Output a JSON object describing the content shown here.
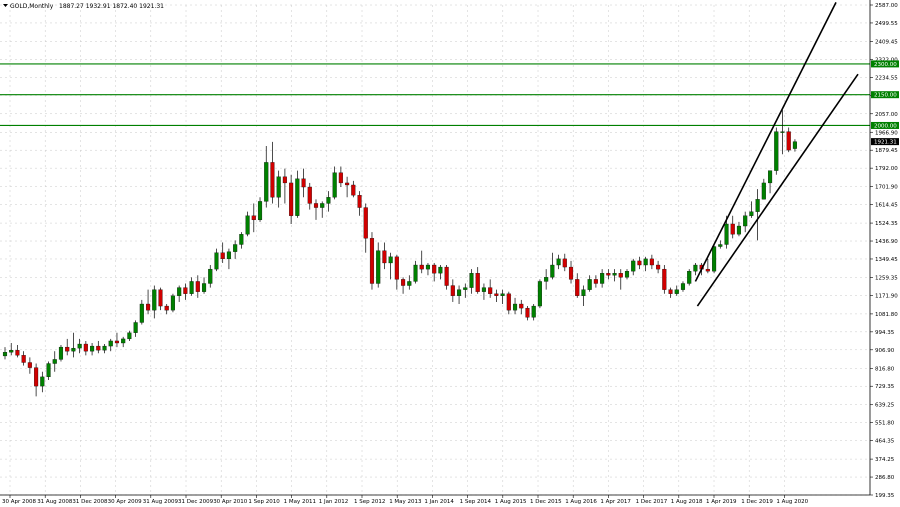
{
  "header": {
    "symbol_label": "GOLD,Monthly",
    "ohlc_label": "1887.27 1932.91 1872.40 1921.31"
  },
  "chart_data": {
    "type": "candlestick",
    "y_ticks": [
      "2587.00",
      "2499.55",
      "2409.45",
      "2322.00",
      "2234.55",
      "2147.10",
      "2057.00",
      "1966.90",
      "1879.45",
      "1792.00",
      "1701.90",
      "1614.45",
      "1524.35",
      "1436.90",
      "1349.45",
      "1259.35",
      "1171.90",
      "1081.80",
      "994.35",
      "906.90",
      "816.80",
      "729.35",
      "639.25",
      "551.80",
      "464.35",
      "374.25",
      "286.80",
      "199.35"
    ],
    "x_ticks": [
      "30 Apr 2008",
      "31 Aug 2008",
      "31 Dec 2008",
      "30 Apr 2009",
      "31 Aug 2009",
      "31 Dec 2009",
      "30 Apr 2010",
      "1 Sep 2010",
      "1 May 2011",
      "1 Jan 2012",
      "1 Sep 2012",
      "1 May 2013",
      "1 Jan 2014",
      "1 Sep 2014",
      "1 Aug 2015",
      "1 Dec 2015",
      "1 Aug 2016",
      "1 Apr 2017",
      "1 Dec 2017",
      "1 Aug 2018",
      "1 Apr 2019",
      "1 Dec 2019",
      "1 Aug 2020"
    ],
    "horizontal_levels": [
      {
        "value": 2300.0,
        "label": "2300.00",
        "color": "#008000"
      },
      {
        "value": 2150.0,
        "label": "2150.00",
        "color": "#008000"
      },
      {
        "value": 2000.0,
        "label": "2000.00",
        "color": "#008000"
      }
    ],
    "current_price": {
      "value": 1921.31,
      "label": "1921.31",
      "color": "#000000"
    },
    "trend_lines": [
      {
        "from": [
          1,
          1210
        ],
        "to": [
          1,
          2600
        ]
      },
      {
        "from": [
          1,
          1150
        ],
        "to": [
          1,
          2250
        ]
      }
    ],
    "candles": [
      [
        877,
        920,
        860,
        895
      ],
      [
        895,
        940,
        880,
        905
      ],
      [
        905,
        930,
        870,
        880
      ],
      [
        880,
        900,
        830,
        845
      ],
      [
        845,
        870,
        790,
        820
      ],
      [
        820,
        840,
        680,
        730
      ],
      [
        730,
        800,
        700,
        775
      ],
      [
        775,
        850,
        760,
        840
      ],
      [
        840,
        900,
        800,
        860
      ],
      [
        860,
        930,
        850,
        920
      ],
      [
        920,
        960,
        880,
        900
      ],
      [
        900,
        990,
        870,
        915
      ],
      [
        915,
        960,
        890,
        935
      ],
      [
        935,
        950,
        880,
        900
      ],
      [
        900,
        940,
        880,
        925
      ],
      [
        925,
        950,
        890,
        905
      ],
      [
        905,
        935,
        890,
        925
      ],
      [
        925,
        960,
        900,
        950
      ],
      [
        950,
        990,
        920,
        940
      ],
      [
        940,
        970,
        920,
        960
      ],
      [
        960,
        1000,
        950,
        990
      ],
      [
        990,
        1050,
        970,
        1040
      ],
      [
        1040,
        1150,
        1030,
        1130
      ],
      [
        1130,
        1200,
        1080,
        1100
      ],
      [
        1100,
        1220,
        1060,
        1200
      ],
      [
        1200,
        1210,
        1100,
        1120
      ],
      [
        1120,
        1130,
        1080,
        1100
      ],
      [
        1100,
        1180,
        1090,
        1170
      ],
      [
        1170,
        1220,
        1140,
        1210
      ],
      [
        1210,
        1230,
        1150,
        1180
      ],
      [
        1180,
        1260,
        1170,
        1240
      ],
      [
        1240,
        1270,
        1160,
        1190
      ],
      [
        1190,
        1260,
        1180,
        1230
      ],
      [
        1230,
        1320,
        1210,
        1300
      ],
      [
        1300,
        1400,
        1290,
        1380
      ],
      [
        1380,
        1430,
        1330,
        1350
      ],
      [
        1350,
        1400,
        1300,
        1385
      ],
      [
        1385,
        1440,
        1350,
        1420
      ],
      [
        1420,
        1480,
        1400,
        1470
      ],
      [
        1470,
        1580,
        1460,
        1560
      ],
      [
        1560,
        1620,
        1480,
        1540
      ],
      [
        1540,
        1650,
        1530,
        1630
      ],
      [
        1630,
        1900,
        1600,
        1820
      ],
      [
        1820,
        1920,
        1620,
        1650
      ],
      [
        1650,
        1780,
        1600,
        1750
      ],
      [
        1750,
        1790,
        1620,
        1720
      ],
      [
        1720,
        1760,
        1520,
        1560
      ],
      [
        1560,
        1780,
        1550,
        1740
      ],
      [
        1740,
        1790,
        1650,
        1700
      ],
      [
        1700,
        1720,
        1590,
        1620
      ],
      [
        1620,
        1640,
        1540,
        1600
      ],
      [
        1600,
        1630,
        1550,
        1620
      ],
      [
        1620,
        1680,
        1580,
        1650
      ],
      [
        1650,
        1800,
        1640,
        1770
      ],
      [
        1770,
        1800,
        1700,
        1720
      ],
      [
        1720,
        1750,
        1650,
        1710
      ],
      [
        1710,
        1730,
        1650,
        1660
      ],
      [
        1660,
        1680,
        1560,
        1600
      ],
      [
        1600,
        1620,
        1380,
        1450
      ],
      [
        1450,
        1480,
        1200,
        1230
      ],
      [
        1230,
        1430,
        1210,
        1390
      ],
      [
        1390,
        1430,
        1300,
        1330
      ],
      [
        1330,
        1380,
        1250,
        1360
      ],
      [
        1360,
        1370,
        1200,
        1250
      ],
      [
        1250,
        1260,
        1180,
        1220
      ],
      [
        1220,
        1270,
        1200,
        1240
      ],
      [
        1240,
        1340,
        1230,
        1320
      ],
      [
        1320,
        1390,
        1280,
        1300
      ],
      [
        1300,
        1330,
        1270,
        1320
      ],
      [
        1320,
        1330,
        1240,
        1280
      ],
      [
        1280,
        1320,
        1250,
        1310
      ],
      [
        1310,
        1320,
        1200,
        1220
      ],
      [
        1220,
        1250,
        1140,
        1170
      ],
      [
        1170,
        1220,
        1130,
        1200
      ],
      [
        1200,
        1230,
        1160,
        1210
      ],
      [
        1210,
        1300,
        1180,
        1280
      ],
      [
        1280,
        1310,
        1180,
        1190
      ],
      [
        1190,
        1230,
        1150,
        1210
      ],
      [
        1210,
        1250,
        1160,
        1180
      ],
      [
        1180,
        1200,
        1140,
        1170
      ],
      [
        1170,
        1200,
        1130,
        1180
      ],
      [
        1180,
        1190,
        1080,
        1100
      ],
      [
        1100,
        1160,
        1080,
        1130
      ],
      [
        1130,
        1150,
        1080,
        1110
      ],
      [
        1110,
        1120,
        1050,
        1065
      ],
      [
        1065,
        1130,
        1050,
        1120
      ],
      [
        1120,
        1250,
        1110,
        1240
      ],
      [
        1240,
        1300,
        1200,
        1260
      ],
      [
        1260,
        1380,
        1250,
        1320
      ],
      [
        1320,
        1370,
        1300,
        1350
      ],
      [
        1350,
        1375,
        1290,
        1310
      ],
      [
        1310,
        1340,
        1230,
        1250
      ],
      [
        1250,
        1280,
        1160,
        1170
      ],
      [
        1170,
        1220,
        1120,
        1200
      ],
      [
        1200,
        1270,
        1190,
        1250
      ],
      [
        1250,
        1270,
        1210,
        1230
      ],
      [
        1230,
        1300,
        1210,
        1280
      ],
      [
        1280,
        1300,
        1250,
        1270
      ],
      [
        1270,
        1300,
        1240,
        1280
      ],
      [
        1280,
        1300,
        1200,
        1260
      ],
      [
        1260,
        1300,
        1250,
        1290
      ],
      [
        1290,
        1350,
        1270,
        1340
      ],
      [
        1340,
        1360,
        1300,
        1320
      ],
      [
        1320,
        1360,
        1290,
        1350
      ],
      [
        1350,
        1370,
        1300,
        1320
      ],
      [
        1320,
        1340,
        1280,
        1300
      ],
      [
        1300,
        1320,
        1180,
        1200
      ],
      [
        1200,
        1210,
        1160,
        1180
      ],
      [
        1180,
        1220,
        1170,
        1200
      ],
      [
        1200,
        1240,
        1190,
        1230
      ],
      [
        1230,
        1300,
        1220,
        1290
      ],
      [
        1290,
        1330,
        1270,
        1320
      ],
      [
        1320,
        1330,
        1270,
        1300
      ],
      [
        1300,
        1350,
        1280,
        1290
      ],
      [
        1290,
        1420,
        1280,
        1410
      ],
      [
        1410,
        1440,
        1400,
        1420
      ],
      [
        1420,
        1560,
        1400,
        1520
      ],
      [
        1520,
        1560,
        1450,
        1470
      ],
      [
        1470,
        1530,
        1460,
        1510
      ],
      [
        1510,
        1580,
        1480,
        1560
      ],
      [
        1560,
        1630,
        1550,
        1580
      ],
      [
        1580,
        1690,
        1440,
        1640
      ],
      [
        1640,
        1740,
        1640,
        1720
      ],
      [
        1720,
        1780,
        1670,
        1780
      ],
      [
        1780,
        1990,
        1760,
        1970
      ],
      [
        1970,
        2075,
        1860,
        1970
      ],
      [
        1970,
        1990,
        1870,
        1880
      ],
      [
        1887.27,
        1932.91,
        1872.4,
        1921.31
      ]
    ]
  }
}
